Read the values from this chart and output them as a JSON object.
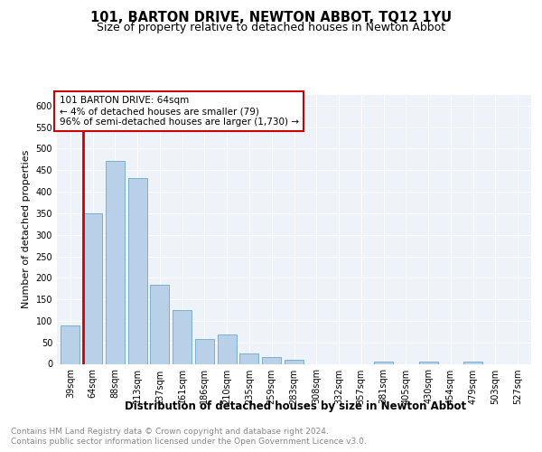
{
  "title": "101, BARTON DRIVE, NEWTON ABBOT, TQ12 1YU",
  "subtitle": "Size of property relative to detached houses in Newton Abbot",
  "xlabel": "Distribution of detached houses by size in Newton Abbot",
  "ylabel": "Number of detached properties",
  "categories": [
    "39sqm",
    "64sqm",
    "88sqm",
    "113sqm",
    "137sqm",
    "161sqm",
    "186sqm",
    "210sqm",
    "235sqm",
    "259sqm",
    "283sqm",
    "308sqm",
    "332sqm",
    "357sqm",
    "381sqm",
    "405sqm",
    "430sqm",
    "454sqm",
    "479sqm",
    "503sqm",
    "527sqm"
  ],
  "values": [
    90,
    350,
    472,
    432,
    184,
    124,
    57,
    68,
    25,
    15,
    9,
    0,
    0,
    0,
    5,
    0,
    5,
    0,
    6,
    0,
    0
  ],
  "highlight_index": 1,
  "bar_color": "#b8d0e8",
  "bar_edge_color": "#7aafd4",
  "highlight_edge_color": "#cc0000",
  "annotation_text": "101 BARTON DRIVE: 64sqm\n← 4% of detached houses are smaller (79)\n96% of semi-detached houses are larger (1,730) →",
  "annotation_box_color": "#ffffff",
  "annotation_edge_color": "#cc0000",
  "ylim": [
    0,
    625
  ],
  "yticks": [
    0,
    50,
    100,
    150,
    200,
    250,
    300,
    350,
    400,
    450,
    500,
    550,
    600
  ],
  "background_color": "#eef2f9",
  "grid_color": "#ffffff",
  "footer_line1": "Contains HM Land Registry data © Crown copyright and database right 2024.",
  "footer_line2": "Contains public sector information licensed under the Open Government Licence v3.0.",
  "title_fontsize": 10.5,
  "subtitle_fontsize": 9,
  "xlabel_fontsize": 8.5,
  "ylabel_fontsize": 8,
  "tick_fontsize": 7,
  "annotation_fontsize": 7.5,
  "footer_fontsize": 6.5
}
